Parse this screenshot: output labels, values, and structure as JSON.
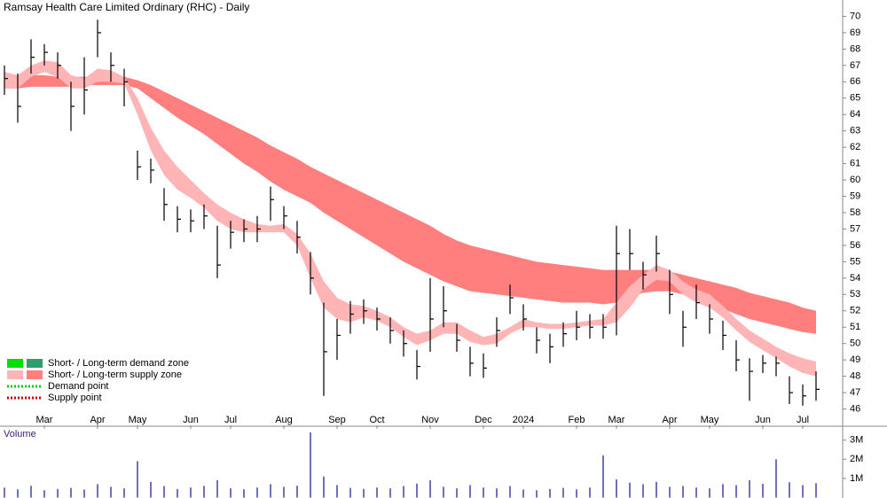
{
  "chart_data": {
    "type": "ohlc",
    "title": "Ramsay Health Care Limited Ordinary (RHC) - Daily",
    "categories": [
      null,
      null,
      null,
      "Mar",
      null,
      null,
      null,
      "Apr",
      null,
      null,
      "May",
      null,
      null,
      null,
      "Jun",
      null,
      null,
      "Jul",
      null,
      null,
      null,
      "Aug",
      null,
      null,
      null,
      "Sep",
      null,
      null,
      "Oct",
      null,
      null,
      null,
      "Nov",
      null,
      null,
      null,
      "Dec",
      null,
      null,
      "2024",
      null,
      null,
      null,
      "Feb",
      null,
      null,
      "Mar",
      null,
      null,
      null,
      "Apr",
      null,
      null,
      "May",
      null,
      null,
      null,
      "Jun",
      null,
      null,
      "Jul",
      null
    ],
    "high": [
      67,
      66.5,
      68.6,
      68.3,
      67.8,
      66,
      67.5,
      69.8,
      67.8,
      66.8,
      61.8,
      61.3,
      59.5,
      58.4,
      58.2,
      58.5,
      57.2,
      57.5,
      57.6,
      57.8,
      59.6,
      58.4,
      57.5,
      55.6,
      52.5,
      51.5,
      52.6,
      52.7,
      52.2,
      51.6,
      50.8,
      49.6,
      54,
      53.5,
      51.2,
      49.8,
      49.4,
      51.6,
      53.6,
      52.4,
      51,
      50.6,
      51.3,
      52,
      51.8,
      51.8,
      57.2,
      57,
      55,
      56.6,
      54.5,
      52,
      53.6,
      52.4,
      51.4,
      50.2,
      49.1,
      49.3,
      49.2,
      48,
      47.5,
      48.3
    ],
    "low": [
      65.2,
      63.5,
      66.5,
      67,
      66.2,
      63,
      64,
      67.5,
      66,
      64.5,
      60,
      59.8,
      57.5,
      56.8,
      56.8,
      57,
      54,
      55.8,
      56.2,
      56.2,
      57.5,
      57,
      55.5,
      53,
      46.8,
      49,
      50.6,
      51.2,
      50.8,
      50,
      49.2,
      47.8,
      49.5,
      51,
      49.5,
      48,
      47.9,
      49.8,
      51.8,
      50.8,
      49.4,
      48.8,
      49.8,
      50.2,
      50.3,
      50.3,
      50.5,
      54.5,
      53.3,
      54.4,
      51.8,
      49.8,
      51.5,
      50.6,
      49.6,
      48.3,
      46.5,
      48.2,
      48,
      46.3,
      46.2,
      46.5
    ],
    "close": [
      66.2,
      64.5,
      67.5,
      67.8,
      67,
      64.5,
      65.5,
      69,
      67,
      66,
      60.8,
      60.6,
      58.5,
      57.6,
      57.5,
      57.8,
      54.8,
      56.8,
      57,
      57,
      58.8,
      57.8,
      56.5,
      54,
      49.5,
      50.5,
      51.8,
      52,
      51.5,
      50.8,
      50,
      48.6,
      51.5,
      52,
      50.2,
      48.8,
      48.5,
      50.8,
      52.8,
      51.5,
      50.2,
      49.8,
      50.6,
      51,
      51,
      51,
      55.5,
      55.5,
      54.2,
      55.5,
      53,
      51,
      52.5,
      51.5,
      50.5,
      49,
      48.3,
      48.8,
      48.8,
      47,
      46.8,
      47.2
    ],
    "color": "#000000",
    "bands": [
      {
        "color": "#ff7f7f",
        "upper": [
          66.5,
          66.4,
          66.4,
          66.4,
          66.3,
          66.3,
          66.3,
          66.3,
          66.3,
          66.3,
          66.1,
          65.8,
          65.4,
          65.0,
          64.6,
          64.2,
          63.8,
          63.4,
          63.0,
          62.6,
          62.1,
          61.7,
          61.3,
          60.8,
          60.4,
          60.0,
          59.6,
          59.2,
          58.8,
          58.4,
          58.0,
          57.6,
          57.2,
          56.7,
          56.3,
          56.0,
          55.8,
          55.6,
          55.4,
          55.2,
          55.0,
          54.9,
          54.8,
          54.7,
          54.6,
          54.5,
          54.5,
          54.5,
          54.5,
          54.5,
          54.4,
          54.2,
          54.0,
          53.8,
          53.6,
          53.4,
          53.1,
          52.9,
          52.7,
          52.5,
          52.2,
          52.0
        ],
        "lower": [
          65.6,
          65.6,
          65.7,
          65.7,
          65.7,
          65.7,
          65.8,
          65.8,
          65.8,
          65.8,
          65.6,
          65.0,
          64.4,
          63.8,
          63.3,
          62.8,
          62.2,
          61.6,
          61.0,
          60.5,
          59.9,
          59.4,
          59.0,
          58.6,
          58.0,
          57.5,
          57.0,
          56.5,
          56.0,
          55.5,
          55.0,
          54.6,
          54.2,
          53.8,
          53.5,
          53.2,
          53.1,
          53.0,
          52.9,
          52.8,
          52.7,
          52.6,
          52.5,
          52.5,
          52.5,
          52.4,
          52.5,
          52.8,
          53.1,
          53.2,
          53.2,
          53.0,
          52.7,
          52.4,
          52.1,
          51.8,
          51.5,
          51.3,
          51.1,
          50.9,
          50.7,
          50.6
        ]
      },
      {
        "color": "#ffb5b5",
        "upper": [
          66.6,
          66.4,
          67.0,
          67.3,
          67.2,
          66.4,
          66.2,
          66.8,
          66.7,
          66.3,
          65.0,
          63.2,
          61.8,
          60.8,
          60.0,
          59.2,
          58.5,
          58.0,
          57.6,
          57.3,
          57.2,
          57.3,
          56.7,
          55.5,
          53.8,
          52.8,
          52.4,
          52.3,
          52.0,
          51.6,
          51.0,
          50.6,
          50.8,
          51.3,
          51.3,
          50.8,
          50.4,
          50.6,
          51.0,
          51.5,
          51.3,
          51.2,
          51.2,
          51.3,
          51.4,
          51.5,
          52.5,
          53.5,
          54.2,
          54.8,
          54.5,
          53.8,
          53.3,
          53.0,
          52.3,
          51.5,
          50.8,
          50.3,
          49.8,
          49.4,
          49.1,
          48.9
        ],
        "lower": [
          65.6,
          65.6,
          66.3,
          66.6,
          66.3,
          65.6,
          65.6,
          66.0,
          66.0,
          65.9,
          64.0,
          61.8,
          60.3,
          59.4,
          58.9,
          58.3,
          57.5,
          57.0,
          56.8,
          56.8,
          56.8,
          56.8,
          56.0,
          54.0,
          52.2,
          51.5,
          51.3,
          51.6,
          51.4,
          51.0,
          50.4,
          49.9,
          50.2,
          50.6,
          50.6,
          50.1,
          49.9,
          50.0,
          50.6,
          51.0,
          51.0,
          50.9,
          50.9,
          51.0,
          51.1,
          51.1,
          51.3,
          52.2,
          53.3,
          53.9,
          53.8,
          53.0,
          52.5,
          52.2,
          51.6,
          50.8,
          50.1,
          49.6,
          49.1,
          48.6,
          48.2,
          48.0
        ]
      }
    ],
    "ylim": [
      45,
      71
    ],
    "yticks": [
      46,
      47,
      48,
      49,
      50,
      51,
      52,
      53,
      54,
      55,
      56,
      57,
      58,
      59,
      60,
      61,
      62,
      63,
      64,
      65,
      66,
      67,
      68,
      69,
      70
    ],
    "legend": [
      {
        "label": "Short- / Long-term demand zone",
        "colors": [
          "#00e000",
          "#2e9e6e"
        ]
      },
      {
        "label": "Short- / Long-term supply zone",
        "colors": [
          "#ffb5b5",
          "#ff7f7f"
        ]
      },
      {
        "label": "Demand point",
        "color": "#00cc00",
        "style": "dotted"
      },
      {
        "label": "Supply point",
        "color": "#cc0000",
        "style": "dotted"
      }
    ],
    "volume": {
      "label": "Volume",
      "color": "#7070c0",
      "values": [
        520000,
        430000,
        610000,
        380000,
        450000,
        500000,
        420000,
        700000,
        560000,
        480000,
        1900000,
        820000,
        600000,
        450000,
        520000,
        610000,
        900000,
        480000,
        430000,
        520000,
        700000,
        560000,
        620000,
        3400000,
        1100000,
        650000,
        500000,
        450000,
        520000,
        480000,
        600000,
        730000,
        900000,
        560000,
        480000,
        650000,
        520000,
        480000,
        600000,
        420000,
        380000,
        450000,
        500000,
        430000,
        520000,
        2200000,
        950000,
        780000,
        700000,
        820000,
        560000,
        600000,
        520000,
        480000,
        700000,
        650000,
        900000,
        720000,
        2000000,
        800000,
        650000,
        750000
      ],
      "ylim": [
        0,
        3400000
      ],
      "yticks": [
        {
          "value": 1000000,
          "label": "1M"
        },
        {
          "value": 2000000,
          "label": "2M"
        },
        {
          "value": 3000000,
          "label": "3M"
        }
      ]
    }
  }
}
